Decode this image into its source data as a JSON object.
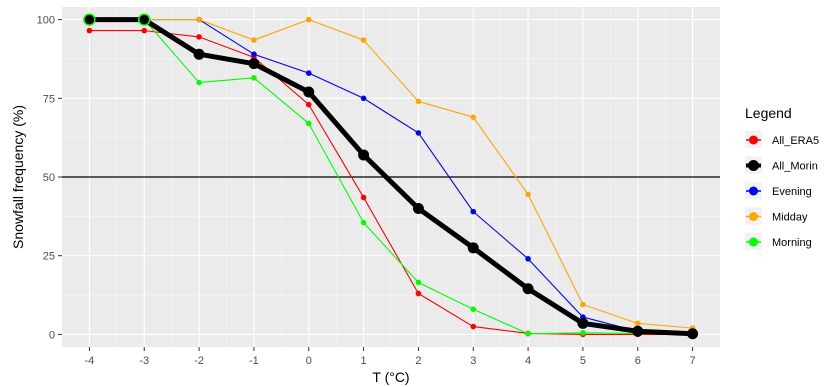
{
  "chart_data": {
    "type": "line",
    "xlabel": "T (°C)",
    "ylabel": "Snowfall frequency (%)",
    "x": [
      -4,
      -3,
      -2,
      -1,
      0,
      1,
      2,
      3,
      4,
      5,
      6,
      7
    ],
    "xlim": [
      -4.5,
      7.5
    ],
    "ylim": [
      -4,
      104
    ],
    "x_ticks": [
      -4,
      -3,
      -2,
      -1,
      0,
      1,
      2,
      3,
      4,
      5,
      6,
      7
    ],
    "y_ticks": [
      0,
      25,
      50,
      75,
      100
    ],
    "reference_line": {
      "y": 50,
      "color": "#000000"
    },
    "grid": true,
    "legend": {
      "title": "Legend",
      "position": "right"
    },
    "series": [
      {
        "name": "All_ERA5",
        "color": "#ff0000",
        "values": [
          96.5,
          96.5,
          94.5,
          88,
          73,
          43.5,
          13,
          2.5,
          0.3,
          0,
          0,
          0
        ]
      },
      {
        "name": "Evening",
        "color": "#0000ff",
        "values": [
          100,
          100,
          100,
          89,
          83,
          75,
          64,
          39,
          24,
          5.5,
          1,
          0.5
        ]
      },
      {
        "name": "Midday",
        "color": "#ffa500",
        "values": [
          100,
          100,
          100,
          93.5,
          100,
          93.5,
          74,
          69,
          44.5,
          9.5,
          3.5,
          2
        ]
      },
      {
        "name": "Morning",
        "color": "#00ff00",
        "values": [
          100,
          100,
          80,
          81.5,
          67,
          35.5,
          16.5,
          8,
          0.2,
          0.5,
          0.3,
          0.2
        ]
      },
      {
        "name": "All_Morin",
        "color": "#000000",
        "values": [
          100,
          100,
          89,
          86,
          77,
          57,
          40,
          27.5,
          14.5,
          3.5,
          1,
          0.2
        ],
        "thick": true
      }
    ]
  }
}
